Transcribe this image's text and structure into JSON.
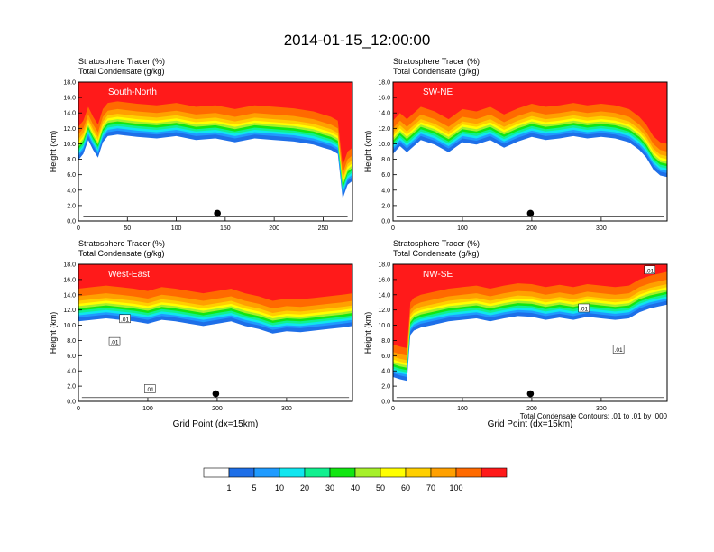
{
  "figure": {
    "title": "2014-01-15_12:00:00",
    "contour_note": "Total Condensate Contours: .01 to .01 by .000",
    "xlabel": "Grid Point (dx=15km)"
  },
  "colorbar": {
    "labels": [
      "1",
      "5",
      "10",
      "20",
      "30",
      "40",
      "50",
      "60",
      "70",
      "100"
    ],
    "colors": [
      "#ffffff",
      "#1e6fe8",
      "#1f9bff",
      "#10e6ef",
      "#10f08f",
      "#12e612",
      "#a6f02a",
      "#ffff00",
      "#ffcf00",
      "#ffa000",
      "#ff6a00",
      "#ff1a1a"
    ]
  },
  "chart_data": [
    {
      "type": "contour",
      "label": "South-North",
      "line1": "Stratosphere Tracer   (%)",
      "line2": "Total Condensate   (g/kg)",
      "ylabel": "Height (km)",
      "xlabel": "",
      "xlim": [
        0,
        280
      ],
      "ylim": [
        0,
        18
      ],
      "xticks": [
        "0",
        "50",
        "100",
        "150",
        "200",
        "250"
      ],
      "yticks": [
        "0.0",
        "2.0",
        "4.0",
        "6.0",
        "8.0",
        "10.0",
        "12.0",
        "14.0",
        "16.0",
        "18.0"
      ],
      "marker": {
        "x": 142,
        "y": 1.0
      },
      "tracer_profile": {
        "x": [
          0,
          5,
          10,
          15,
          20,
          25,
          30,
          40,
          60,
          80,
          100,
          120,
          140,
          160,
          180,
          200,
          220,
          240,
          250,
          258,
          265,
          270,
          275,
          280
        ],
        "tracer_bottom_km": [
          12.2,
          13.0,
          14.8,
          13.5,
          12.5,
          14.5,
          15.3,
          15.5,
          15.2,
          15.0,
          15.3,
          14.8,
          15.0,
          14.5,
          15.0,
          14.8,
          14.6,
          14.2,
          13.8,
          13.5,
          13.0,
          7.2,
          9.0,
          9.5
        ]
      },
      "contour_labels": []
    },
    {
      "type": "contour",
      "label": "SW-NE",
      "line1": "Stratosphere Tracer   (%)",
      "line2": "Total Condensate   (g/kg)",
      "ylabel": "Height (km)",
      "xlabel": "",
      "xlim": [
        0,
        395
      ],
      "ylim": [
        0,
        18
      ],
      "xticks": [
        "0",
        "100",
        "200",
        "300"
      ],
      "yticks": [
        "0.0",
        "2.0",
        "4.0",
        "6.0",
        "8.0",
        "10.0",
        "12.0",
        "14.0",
        "16.0",
        "18.0"
      ],
      "marker": {
        "x": 198,
        "y": 1.0
      },
      "tracer_profile": {
        "x": [
          0,
          10,
          20,
          40,
          60,
          80,
          100,
          120,
          140,
          160,
          180,
          200,
          220,
          240,
          260,
          280,
          300,
          320,
          340,
          355,
          365,
          375,
          385,
          395
        ],
        "tracer_bottom_km": [
          13.0,
          14.0,
          13.2,
          14.8,
          14.2,
          13.2,
          14.5,
          14.2,
          14.8,
          13.8,
          14.6,
          15.2,
          14.8,
          15.0,
          15.3,
          15.0,
          15.2,
          15.0,
          14.5,
          13.5,
          12.5,
          11.0,
          10.2,
          10.0
        ]
      },
      "contour_labels": []
    },
    {
      "type": "contour",
      "label": "West-East",
      "line1": "Stratosphere Tracer   (%)",
      "line2": "Total Condensate   (g/kg)",
      "ylabel": "Height (km)",
      "xlabel": "Grid Point (dx=15km)",
      "xlim": [
        0,
        395
      ],
      "ylim": [
        0,
        18
      ],
      "xticks": [
        "0",
        "100",
        "200",
        "300"
      ],
      "yticks": [
        "0.0",
        "2.0",
        "4.0",
        "6.0",
        "8.0",
        "10.0",
        "12.0",
        "14.0",
        "16.0",
        "18.0"
      ],
      "marker": {
        "x": 198,
        "y": 1.0
      },
      "tracer_profile": {
        "x": [
          0,
          20,
          40,
          60,
          80,
          100,
          120,
          140,
          160,
          180,
          200,
          220,
          240,
          260,
          280,
          300,
          320,
          340,
          360,
          380,
          395
        ],
        "tracer_bottom_km": [
          14.8,
          15.0,
          15.2,
          15.0,
          14.8,
          14.5,
          15.0,
          14.8,
          14.5,
          14.2,
          14.5,
          14.8,
          14.2,
          13.8,
          13.2,
          13.5,
          13.4,
          13.6,
          13.8,
          14.0,
          14.2
        ]
      },
      "contour_labels": [
        {
          "text": ".01",
          "x": 67,
          "y": 10.8
        },
        {
          "text": ".01",
          "x": 52,
          "y": 7.8
        },
        {
          "text": ".01",
          "x": 103,
          "y": 1.6
        }
      ]
    },
    {
      "type": "contour",
      "label": "NW-SE",
      "line1": "Stratosphere Tracer   (%)",
      "line2": "Total Condensate   (g/kg)",
      "ylabel": "Height (km)",
      "xlabel": "Grid Point (dx=15km)",
      "xlim": [
        0,
        395
      ],
      "ylim": [
        0,
        18
      ],
      "xticks": [
        "0",
        "100",
        "200",
        "300"
      ],
      "yticks": [
        "0.0",
        "2.0",
        "4.0",
        "6.0",
        "8.0",
        "10.0",
        "12.0",
        "14.0",
        "16.0",
        "18.0"
      ],
      "marker": {
        "x": 198,
        "y": 1.0
      },
      "tracer_profile": {
        "x": [
          0,
          10,
          20,
          25,
          30,
          40,
          60,
          80,
          100,
          120,
          140,
          160,
          180,
          200,
          220,
          240,
          260,
          280,
          300,
          320,
          340,
          355,
          370,
          385,
          395
        ],
        "tracer_bottom_km": [
          7.5,
          7.2,
          7.0,
          13.0,
          13.6,
          14.0,
          14.4,
          14.8,
          15.0,
          15.2,
          14.8,
          15.2,
          15.5,
          15.4,
          15.0,
          15.3,
          15.0,
          15.4,
          15.2,
          15.0,
          15.2,
          16.0,
          16.5,
          16.8,
          17.0
        ]
      },
      "contour_labels": [
        {
          "text": ".01",
          "x": 275,
          "y": 12.2
        },
        {
          "text": ".01",
          "x": 325,
          "y": 6.8
        },
        {
          "text": ".01",
          "x": 370,
          "y": 17.2
        }
      ]
    }
  ]
}
